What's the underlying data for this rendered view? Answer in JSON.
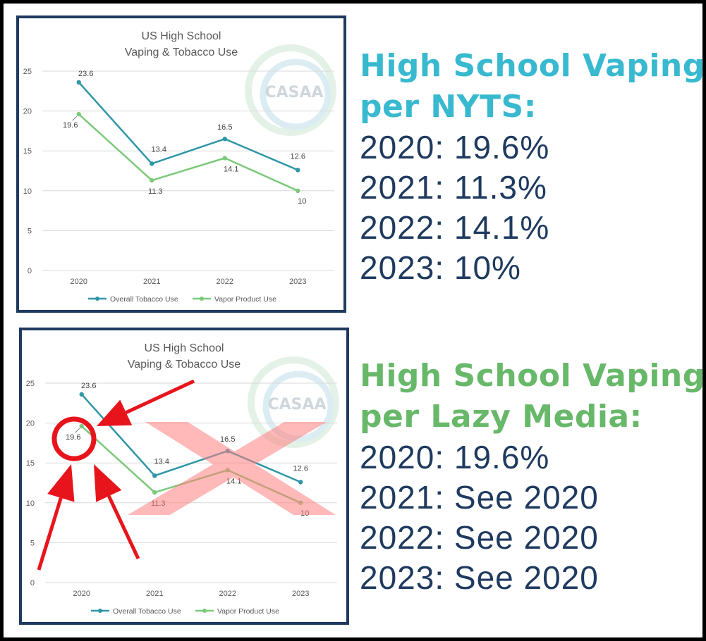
{
  "colors": {
    "tobacco": "#2e96a6",
    "vapor": "#7cc97a",
    "frame": "#1f3a5f",
    "heading_top": "#38b9cf",
    "heading_bottom": "#68b86a",
    "body_text": "#1f3a5f",
    "annotation_red": "#e8141c",
    "cross_red": "#ff8080"
  },
  "watermark": {
    "text": "CASAA",
    "icon": "casaa-swirl-logo"
  },
  "chart_data": [
    {
      "type": "line",
      "title": "US High School",
      "subtitle": "Vaping & Tobacco Use",
      "categories": [
        "2020",
        "2021",
        "2022",
        "2023"
      ],
      "series": [
        {
          "name": "Overall Tobacco Use",
          "values": [
            23.6,
            13.4,
            16.5,
            12.6
          ]
        },
        {
          "name": "Vapor Product Use",
          "values": [
            19.6,
            11.3,
            14.1,
            10
          ]
        }
      ],
      "yticks": [
        "0",
        "5",
        "10",
        "15",
        "20",
        "25"
      ],
      "ylim": [
        0,
        25
      ],
      "grid": true,
      "legend": "bottom"
    },
    {
      "type": "line",
      "title": "US High School",
      "subtitle": "Vaping & Tobacco Use",
      "categories": [
        "2020",
        "2021",
        "2022",
        "2023"
      ],
      "series": [
        {
          "name": "Overall Tobacco Use",
          "values": [
            23.6,
            13.4,
            16.5,
            12.6
          ]
        },
        {
          "name": "Vapor Product Use",
          "values": [
            19.6,
            11.3,
            14.1,
            10
          ]
        }
      ],
      "yticks": [
        "0",
        "5",
        "10",
        "15",
        "20",
        "25"
      ],
      "ylim": [
        0,
        25
      ],
      "grid": true,
      "legend": "bottom"
    }
  ],
  "panels": [
    {
      "heading": [
        "High School Vaping",
        "per NYTS:"
      ],
      "lines": [
        "2020: 19.6%",
        "2021: 11.3%",
        "2022: 14.1%",
        "2023: 10%"
      ]
    },
    {
      "heading": [
        "High School Vaping",
        "per Lazy Media:"
      ],
      "lines": [
        "2020: 19.6%",
        "2021: See 2020",
        "2022: See 2020",
        "2023: See 2020"
      ]
    }
  ]
}
